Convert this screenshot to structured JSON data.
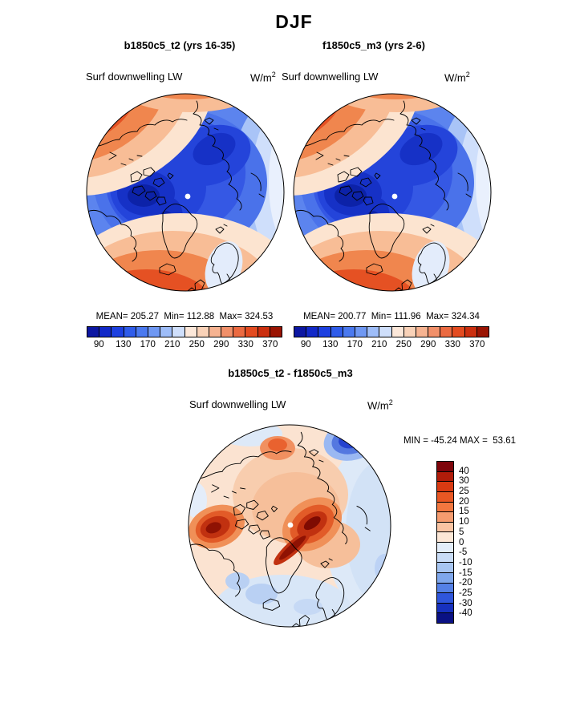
{
  "title": "DJF",
  "panels": [
    {
      "title": "b1850c5_t2 (yrs 16-35)",
      "field_label": "Surf downwelling LW",
      "units": {
        "base": "W/m",
        "exp": "2"
      },
      "stats_line": "MEAN= 205.27  Min= 112.88  Max= 324.53"
    },
    {
      "title": "f1850c5_m3 (yrs 2-6)",
      "field_label": "Surf downwelling LW",
      "units": {
        "base": "W/m",
        "exp": "2"
      },
      "stats_line": "MEAN= 200.77  Min= 111.96  Max= 324.34"
    }
  ],
  "shared": {
    "colorbar_tick_labels": [
      "90",
      "130",
      "170",
      "210",
      "250",
      "290",
      "330",
      "370"
    ],
    "colorbar_colors": [
      "#0c17a2",
      "#1229c8",
      "#1d40e0",
      "#2f5cea",
      "#4a79ef",
      "#6f98f3",
      "#9ebdf8",
      "#cfdffb",
      "#fce8da",
      "#f9d2b8",
      "#f6b391",
      "#f1906a",
      "#eb6a41",
      "#e34b20",
      "#cb2f0f",
      "#9a1403"
    ]
  },
  "diff": {
    "title": "b1850c5_t2 - f1850c5_m3",
    "field_label": "Surf downwelling LW",
    "units": {
      "base": "W/m",
      "exp": "2"
    },
    "minmax_line": "MIN = -45.24 MAX =  53.61",
    "colorbar_tick_labels": [
      "40",
      "30",
      "25",
      "20",
      "15",
      "10",
      "5",
      "0",
      "-5",
      "-10",
      "-15",
      "-20",
      "-25",
      "-30",
      "-40"
    ],
    "colorbar_colors": [
      "#7e050b",
      "#b01c0a",
      "#d83a12",
      "#e95723",
      "#f2773f",
      "#f69c6f",
      "#fac4a3",
      "#fce7d6",
      "#e3edf9",
      "#c9dcf6",
      "#a7c5f1",
      "#7fa7ec",
      "#5480e6",
      "#2f56dc",
      "#1731be",
      "#0a1184"
    ]
  },
  "chart_data": {
    "type": "heatmap",
    "subtype": "north-polar-stereographic-filled-contour-maps",
    "title": "DJF",
    "variable": "Surf downwelling LW",
    "units": "W/m2",
    "panels": [
      {
        "name": "b1850c5_t2 (yrs 16-35)",
        "mean": 205.27,
        "min": 112.88,
        "max": 324.53
      },
      {
        "name": "f1850c5_m3 (yrs 2-6)",
        "mean": 200.77,
        "min": 111.96,
        "max": 324.34
      },
      {
        "name": "b1850c5_t2 - f1850c5_m3",
        "min": -45.24,
        "max": 53.61
      }
    ],
    "top_colorbar_levels": [
      70,
      90,
      110,
      130,
      150,
      170,
      190,
      210,
      230,
      250,
      270,
      290,
      310,
      330,
      350,
      370,
      390
    ],
    "top_colorbar_ticks": [
      90,
      130,
      170,
      210,
      250,
      290,
      330,
      370
    ],
    "diff_colorbar_tick_values": [
      40,
      30,
      25,
      20,
      15,
      10,
      5,
      0,
      -5,
      -10,
      -15,
      -20,
      -25,
      -30,
      -40
    ],
    "legend_position": "horizontal below each top panel; vertical right of difference panel",
    "grid": false
  }
}
